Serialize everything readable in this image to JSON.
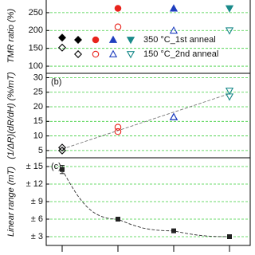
{
  "chart_data": [
    {
      "type": "scatter",
      "y_label": "TMR ratio (%)",
      "ylim": [
        80,
        290
      ],
      "yticks": [
        100,
        150,
        200,
        250
      ],
      "grid": true,
      "colors": [
        "#000000",
        "#e8231c",
        "#1f3fbf",
        "#1a8a8a"
      ],
      "markers": [
        "diamond",
        "circle",
        "triangle-up",
        "triangle-down"
      ],
      "series": [
        {
          "name": "350 °C_1st anneal",
          "filled": true,
          "values": [
            180,
            262,
            262,
            262
          ]
        },
        {
          "name": "150 °C_2nd anneal",
          "filled": false,
          "values": [
            152,
            210,
            200,
            200
          ]
        }
      ]
    },
    {
      "type": "scatter",
      "panel_label": "(b)",
      "y_label": "(1/ΔR)(dR/dH) (%/mT)",
      "ylim": [
        2.5,
        31.5
      ],
      "yticks": [
        5,
        10,
        15,
        20,
        25,
        30
      ],
      "grid": true,
      "trend": "linear",
      "series": [
        {
          "filled": false,
          "values": [
            6,
            13,
            16.5,
            25.5
          ]
        },
        {
          "filled": false,
          "values": [
            5,
            11.5,
            16.5,
            23.5
          ]
        }
      ]
    },
    {
      "type": "errorbar",
      "panel_label": "(c)",
      "y_label": "Linear range (mT)",
      "ylim": [
        1.5,
        16.5
      ],
      "grid": true,
      "trend": "curve",
      "yticks": [
        {
          "value": 3,
          "label": "± 3"
        },
        {
          "value": 6,
          "label": "± 6"
        },
        {
          "value": 9,
          "label": "± 9"
        },
        {
          "value": 12,
          "label": "± 12"
        },
        {
          "value": 15,
          "label": "± 15"
        }
      ],
      "values": [
        14.5,
        6,
        4,
        3
      ],
      "errors": [
        0.7,
        0.3,
        0.25,
        0.15
      ],
      "color": "#222222"
    }
  ]
}
